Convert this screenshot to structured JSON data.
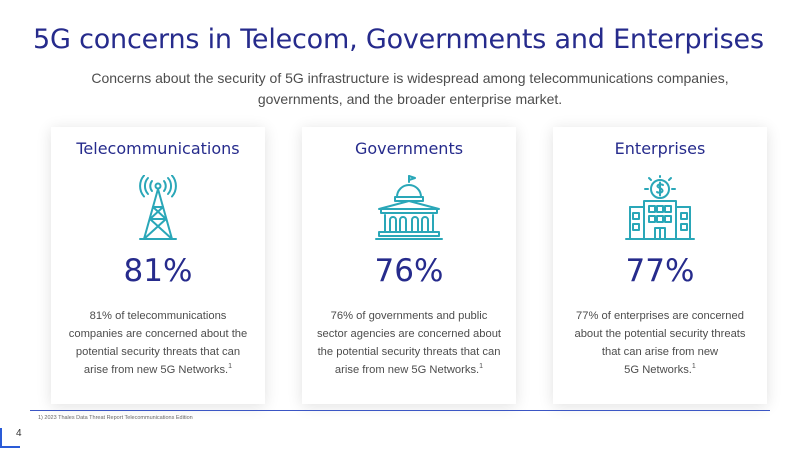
{
  "slide": {
    "title": "5G concerns in Telecom, Governments and Enterprises",
    "subtitle_line1": "Concerns about the security of 5G infrastructure is widespread among telecommunications companies,",
    "subtitle_line2": "governments, and the broader enterprise market."
  },
  "cards": [
    {
      "title": "Telecommunications",
      "icon": "cell-tower-icon",
      "value": "81%",
      "desc": [
        "81% of telecommunications",
        "companies are concerned about the",
        "potential security threats that can",
        "arise from new 5G Networks."
      ],
      "footnote_ref": "1"
    },
    {
      "title": "Governments",
      "icon": "government-building-icon",
      "value": "76%",
      "desc": [
        "76% of governments and public",
        "sector agencies are concerned about",
        "the potential security threats that can",
        "arise from new 5G Networks."
      ],
      "footnote_ref": "1"
    },
    {
      "title": "Enterprises",
      "icon": "enterprise-building-icon",
      "value": "77%",
      "desc": [
        "77% of enterprises are concerned",
        "about the potential security threats",
        "that can arise from new",
        "5G Networks."
      ],
      "footnote_ref": "1"
    }
  ],
  "footer": {
    "footnote": "1) 2023 Thales Data Threat Report Telecommunications Edition",
    "page_number": "4"
  },
  "colors": {
    "title": "#262b8c",
    "icon_stroke": "#2aa7b8",
    "rule": "#3b56c4",
    "corner": "#2a5bd7"
  }
}
